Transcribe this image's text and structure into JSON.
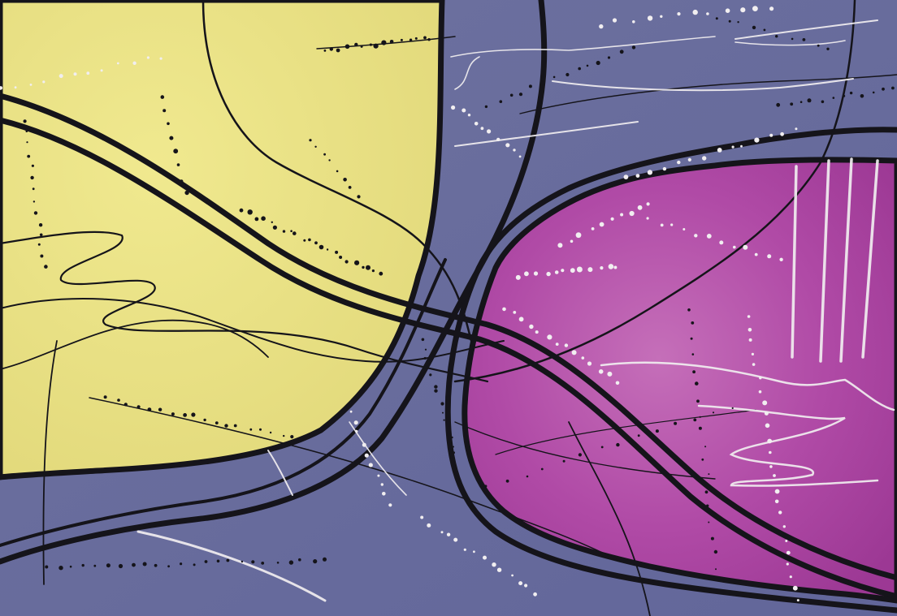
{
  "colors": {
    "background": "#6a6f9c",
    "yellow_shape": "#e9e184",
    "magenta_shape": "#b04aa6",
    "black_line": "#15141a",
    "white_paint": "#f1eef0"
  },
  "subject": "abstract-painting"
}
